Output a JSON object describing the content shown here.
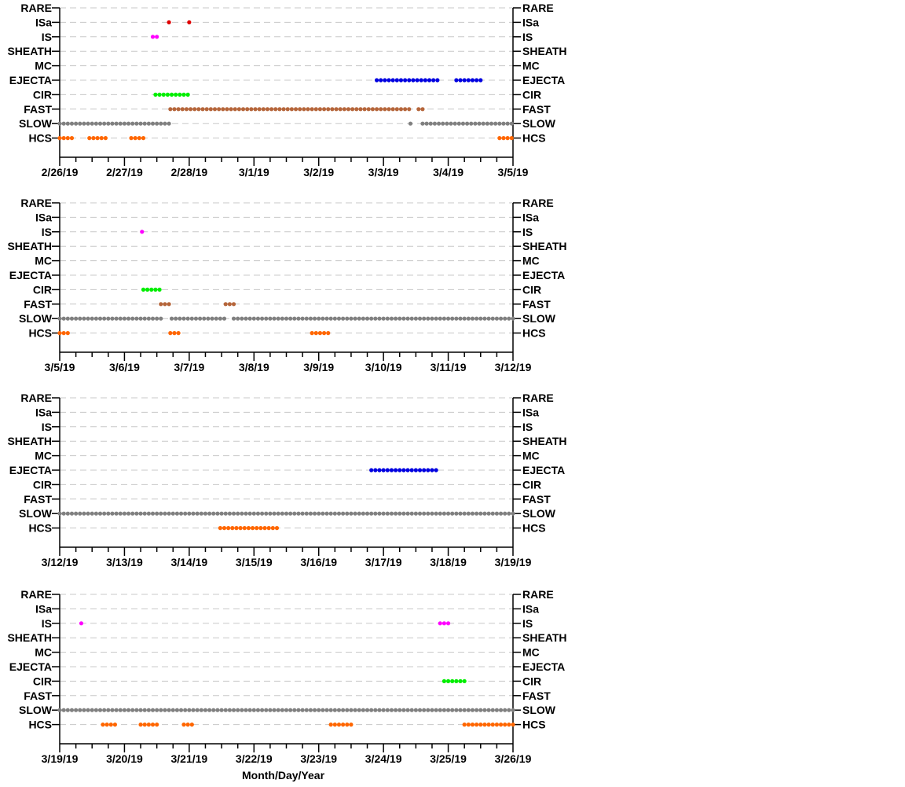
{
  "chart_data": {
    "type": "scatter",
    "categories": [
      "RARE",
      "ISa",
      "IS",
      "SHEATH",
      "MC",
      "EJECTA",
      "CIR",
      "FAST",
      "SLOW",
      "HCS"
    ],
    "category_colors": {
      "RARE": "#000000",
      "ISa": "#e00000",
      "IS": "#ff00ff",
      "SHEATH": "#000000",
      "MC": "#000000",
      "EJECTA": "#0000e0",
      "CIR": "#00ee00",
      "FAST": "#b5653a",
      "SLOW": "#808080",
      "HCS": "#ff6600"
    },
    "grid": "dashed horizontal",
    "xlabel": "Month/Day/Year",
    "panels": [
      {
        "xlim": [
          "2019-02-26",
          "2019-03-05"
        ],
        "ticks": [
          "2/26/19",
          "2/27/19",
          "2/28/19",
          "3/1/19",
          "3/2/19",
          "3/3/19",
          "3/4/19",
          "3/5/19"
        ],
        "segments": [
          {
            "category": "ISa",
            "start": "2019-02-27T16:30",
            "end": "2019-02-27T17:00"
          },
          {
            "category": "ISa",
            "start": "2019-02-28T00:00",
            "end": "2019-02-28T00:00"
          },
          {
            "category": "IS",
            "start": "2019-02-27T10:30",
            "end": "2019-02-27T12:30"
          },
          {
            "category": "EJECTA",
            "start": "2019-03-02T21:30",
            "end": "2019-03-03T20:00"
          },
          {
            "category": "EJECTA",
            "start": "2019-03-04T03:00",
            "end": "2019-03-04T12:00"
          },
          {
            "category": "CIR",
            "start": "2019-02-27T11:30",
            "end": "2019-02-28T00:00"
          },
          {
            "category": "FAST",
            "start": "2019-02-27T17:00",
            "end": "2019-03-03T10:00"
          },
          {
            "category": "FAST",
            "start": "2019-03-03T13:00",
            "end": "2019-03-03T14:30"
          },
          {
            "category": "SLOW",
            "start": "2019-02-26T00:00",
            "end": "2019-02-27T16:30"
          },
          {
            "category": "SLOW",
            "start": "2019-03-03T10:00",
            "end": "2019-03-03T11:00"
          },
          {
            "category": "SLOW",
            "start": "2019-03-03T14:30",
            "end": "2019-03-05T00:00"
          },
          {
            "category": "HCS",
            "start": "2019-02-26T00:00",
            "end": "2019-02-26T05:00"
          },
          {
            "category": "HCS",
            "start": "2019-02-26T11:00",
            "end": "2019-02-26T17:00"
          },
          {
            "category": "HCS",
            "start": "2019-02-27T02:30",
            "end": "2019-02-27T08:00"
          },
          {
            "category": "HCS",
            "start": "2019-03-04T19:00",
            "end": "2019-03-05T00:00"
          }
        ]
      },
      {
        "xlim": [
          "2019-03-05",
          "2019-03-12"
        ],
        "ticks": [
          "3/5/19",
          "3/6/19",
          "3/7/19",
          "3/8/19",
          "3/9/19",
          "3/10/19",
          "3/11/19",
          "3/12/19"
        ],
        "segments": [
          {
            "category": "IS",
            "start": "2019-03-06T06:30",
            "end": "2019-03-06T06:30"
          },
          {
            "category": "CIR",
            "start": "2019-03-06T07:00",
            "end": "2019-03-06T13:30"
          },
          {
            "category": "FAST",
            "start": "2019-03-06T13:30",
            "end": "2019-03-06T17:00"
          },
          {
            "category": "FAST",
            "start": "2019-03-07T13:30",
            "end": "2019-03-07T16:30"
          },
          {
            "category": "SLOW",
            "start": "2019-03-05T00:00",
            "end": "2019-03-06T13:30"
          },
          {
            "category": "SLOW",
            "start": "2019-03-06T17:30",
            "end": "2019-03-07T13:00"
          },
          {
            "category": "SLOW",
            "start": "2019-03-07T16:30",
            "end": "2019-03-12T00:00"
          },
          {
            "category": "HCS",
            "start": "2019-03-05T00:00",
            "end": "2019-03-05T03:00"
          },
          {
            "category": "HCS",
            "start": "2019-03-06T17:00",
            "end": "2019-03-06T21:00"
          },
          {
            "category": "HCS",
            "start": "2019-03-08T21:30",
            "end": "2019-03-09T03:30"
          }
        ]
      },
      {
        "xlim": [
          "2019-03-12",
          "2019-03-19"
        ],
        "ticks": [
          "3/12/19",
          "3/13/19",
          "3/14/19",
          "3/15/19",
          "3/16/19",
          "3/17/19",
          "3/18/19",
          "3/19/19"
        ],
        "segments": [
          {
            "category": "EJECTA",
            "start": "2019-03-16T19:30",
            "end": "2019-03-17T20:00"
          },
          {
            "category": "SLOW",
            "start": "2019-03-12T00:00",
            "end": "2019-03-19T00:00"
          },
          {
            "category": "HCS",
            "start": "2019-03-14T11:30",
            "end": "2019-03-15T09:30"
          }
        ]
      },
      {
        "xlim": [
          "2019-03-19",
          "2019-03-26"
        ],
        "ticks": [
          "3/19/19",
          "3/20/19",
          "3/21/19",
          "3/22/19",
          "3/23/19",
          "3/24/19",
          "3/25/19",
          "3/26/19"
        ],
        "segments": [
          {
            "category": "IS",
            "start": "2019-03-19T08:00",
            "end": "2019-03-19T08:00"
          },
          {
            "category": "IS",
            "start": "2019-03-24T21:00",
            "end": "2019-03-25T00:00"
          },
          {
            "category": "CIR",
            "start": "2019-03-24T22:30",
            "end": "2019-03-25T07:00"
          },
          {
            "category": "SLOW",
            "start": "2019-03-19T00:00",
            "end": "2019-03-26T00:00"
          },
          {
            "category": "HCS",
            "start": "2019-03-19T16:00",
            "end": "2019-03-19T21:30"
          },
          {
            "category": "HCS",
            "start": "2019-03-20T06:00",
            "end": "2019-03-20T13:00"
          },
          {
            "category": "HCS",
            "start": "2019-03-20T22:00",
            "end": "2019-03-21T01:00"
          },
          {
            "category": "HCS",
            "start": "2019-03-23T04:30",
            "end": "2019-03-23T13:00"
          },
          {
            "category": "HCS",
            "start": "2019-03-25T06:00",
            "end": "2019-03-26T00:00"
          }
        ]
      }
    ]
  }
}
